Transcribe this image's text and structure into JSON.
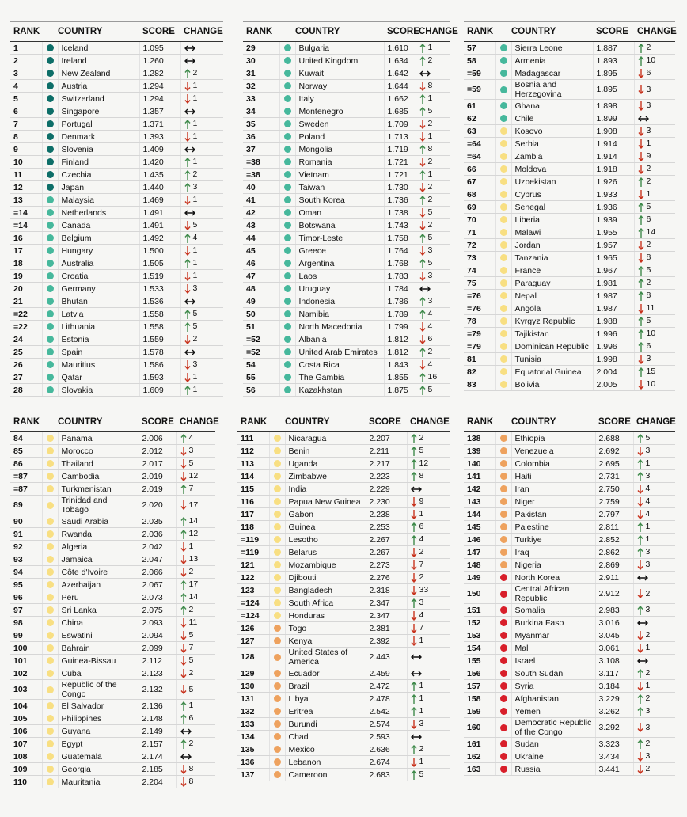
{
  "columns": [
    "RANK",
    "COUNTRY",
    "SCORE",
    "CHANGE"
  ],
  "level_colors": [
    "#0d6e68",
    "#46b89c",
    "#f8df82",
    "#eea25e",
    "#d81f2a"
  ],
  "panels": [
    {
      "rows": [
        [
          1,
          "Iceland",
          "1.095",
          "same",
          null,
          0
        ],
        [
          2,
          "Ireland",
          "1.260",
          "same",
          null,
          0
        ],
        [
          3,
          "New Zealand",
          "1.282",
          "up",
          2,
          0
        ],
        [
          4,
          "Austria",
          "1.294",
          "down",
          1,
          0
        ],
        [
          5,
          "Switzerland",
          "1.294",
          "down",
          1,
          0
        ],
        [
          6,
          "Singapore",
          "1.357",
          "same",
          null,
          0
        ],
        [
          7,
          "Portugal",
          "1.371",
          "up",
          1,
          0
        ],
        [
          8,
          "Denmark",
          "1.393",
          "down",
          1,
          0
        ],
        [
          9,
          "Slovenia",
          "1.409",
          "same",
          null,
          0
        ],
        [
          10,
          "Finland",
          "1.420",
          "up",
          1,
          0
        ],
        [
          11,
          "Czechia",
          "1.435",
          "up",
          2,
          0
        ],
        [
          12,
          "Japan",
          "1.440",
          "up",
          3,
          0
        ],
        [
          13,
          "Malaysia",
          "1.469",
          "down",
          1,
          1
        ],
        [
          "=14",
          "Netherlands",
          "1.491",
          "same",
          null,
          1
        ],
        [
          "=14",
          "Canada",
          "1.491",
          "down",
          5,
          1
        ],
        [
          16,
          "Belgium",
          "1.492",
          "up",
          4,
          1
        ],
        [
          17,
          "Hungary",
          "1.500",
          "down",
          1,
          1
        ],
        [
          18,
          "Australia",
          "1.505",
          "up",
          1,
          1
        ],
        [
          19,
          "Croatia",
          "1.519",
          "down",
          1,
          1
        ],
        [
          20,
          "Germany",
          "1.533",
          "down",
          3,
          1
        ],
        [
          21,
          "Bhutan",
          "1.536",
          "same",
          null,
          1
        ],
        [
          "=22",
          "Latvia",
          "1.558",
          "up",
          5,
          1
        ],
        [
          "=22",
          "Lithuania",
          "1.558",
          "up",
          5,
          1
        ],
        [
          24,
          "Estonia",
          "1.559",
          "down",
          2,
          1
        ],
        [
          25,
          "Spain",
          "1.578",
          "same",
          null,
          1
        ],
        [
          26,
          "Mauritius",
          "1.586",
          "down",
          3,
          1
        ],
        [
          27,
          "Qatar",
          "1.593",
          "down",
          1,
          1
        ],
        [
          28,
          "Slovakia",
          "1.609",
          "up",
          1,
          1
        ]
      ]
    },
    {
      "rows": [
        [
          29,
          "Bulgaria",
          "1.610",
          "up",
          1,
          1
        ],
        [
          30,
          "United Kingdom",
          "1.634",
          "up",
          2,
          1
        ],
        [
          31,
          "Kuwait",
          "1.642",
          "same",
          null,
          1
        ],
        [
          32,
          "Norway",
          "1.644",
          "down",
          8,
          1
        ],
        [
          33,
          "Italy",
          "1.662",
          "up",
          1,
          1
        ],
        [
          34,
          "Montenegro",
          "1.685",
          "up",
          5,
          1
        ],
        [
          35,
          "Sweden",
          "1.709",
          "down",
          2,
          1
        ],
        [
          36,
          "Poland",
          "1.713",
          "down",
          1,
          1
        ],
        [
          37,
          "Mongolia",
          "1.719",
          "up",
          8,
          1
        ],
        [
          "=38",
          "Romania",
          "1.721",
          "down",
          2,
          1
        ],
        [
          "=38",
          "Vietnam",
          "1.721",
          "up",
          1,
          1
        ],
        [
          40,
          "Taiwan",
          "1.730",
          "down",
          2,
          1
        ],
        [
          41,
          "South Korea",
          "1.736",
          "up",
          2,
          1
        ],
        [
          42,
          "Oman",
          "1.738",
          "down",
          5,
          1
        ],
        [
          43,
          "Botswana",
          "1.743",
          "down",
          2,
          1
        ],
        [
          44,
          "Timor-Leste",
          "1.758",
          "up",
          5,
          1
        ],
        [
          45,
          "Greece",
          "1.764",
          "down",
          3,
          1
        ],
        [
          46,
          "Argentina",
          "1.768",
          "up",
          5,
          1
        ],
        [
          47,
          "Laos",
          "1.783",
          "down",
          3,
          1
        ],
        [
          48,
          "Uruguay",
          "1.784",
          "same",
          null,
          1
        ],
        [
          49,
          "Indonesia",
          "1.786",
          "up",
          3,
          1
        ],
        [
          50,
          "Namibia",
          "1.789",
          "up",
          4,
          1
        ],
        [
          51,
          "North Macedonia",
          "1.799",
          "down",
          4,
          1
        ],
        [
          "=52",
          "Albania",
          "1.812",
          "down",
          6,
          1
        ],
        [
          "=52",
          "United Arab Emirates",
          "1.812",
          "up",
          2,
          1
        ],
        [
          54,
          "Costa Rica",
          "1.843",
          "down",
          4,
          1
        ],
        [
          55,
          "The Gambia",
          "1.855",
          "up",
          16,
          1
        ],
        [
          56,
          "Kazakhstan",
          "1.875",
          "up",
          5,
          1
        ]
      ]
    },
    {
      "rows": [
        [
          57,
          "Sierra Leone",
          "1.887",
          "up",
          2,
          1
        ],
        [
          58,
          "Armenia",
          "1.893",
          "up",
          10,
          1
        ],
        [
          "=59",
          "Madagascar",
          "1.895",
          "down",
          6,
          1
        ],
        [
          "=59",
          "Bosnia and Herzegovina",
          "1.895",
          "down",
          3,
          1
        ],
        [
          61,
          "Ghana",
          "1.898",
          "down",
          3,
          1
        ],
        [
          62,
          "Chile",
          "1.899",
          "same",
          null,
          1
        ],
        [
          63,
          "Kosovo",
          "1.908",
          "down",
          3,
          2
        ],
        [
          "=64",
          "Serbia",
          "1.914",
          "down",
          1,
          2
        ],
        [
          "=64",
          "Zambia",
          "1.914",
          "down",
          9,
          2
        ],
        [
          66,
          "Moldova",
          "1.918",
          "down",
          2,
          2
        ],
        [
          67,
          "Uzbekistan",
          "1.926",
          "up",
          2,
          2
        ],
        [
          68,
          "Cyprus",
          "1.933",
          "down",
          1,
          2
        ],
        [
          69,
          "Senegal",
          "1.936",
          "up",
          5,
          2
        ],
        [
          70,
          "Liberia",
          "1.939",
          "up",
          6,
          2
        ],
        [
          71,
          "Malawi",
          "1.955",
          "up",
          14,
          2
        ],
        [
          72,
          "Jordan",
          "1.957",
          "down",
          2,
          2
        ],
        [
          73,
          "Tanzania",
          "1.965",
          "down",
          8,
          2
        ],
        [
          74,
          "France",
          "1.967",
          "up",
          5,
          2
        ],
        [
          75,
          "Paraguay",
          "1.981",
          "up",
          2,
          2
        ],
        [
          "=76",
          "Nepal",
          "1.987",
          "up",
          8,
          2
        ],
        [
          "=76",
          "Angola",
          "1.987",
          "down",
          11,
          2
        ],
        [
          78,
          "Kyrgyz Republic",
          "1.988",
          "up",
          5,
          2
        ],
        [
          "=79",
          "Tajikistan",
          "1.996",
          "up",
          10,
          2
        ],
        [
          "=79",
          "Dominican Republic",
          "1.996",
          "up",
          6,
          2
        ],
        [
          81,
          "Tunisia",
          "1.998",
          "down",
          3,
          2
        ],
        [
          82,
          "Equatorial Guinea",
          "2.004",
          "up",
          15,
          2
        ],
        [
          83,
          "Bolivia",
          "2.005",
          "down",
          10,
          2
        ]
      ]
    },
    {
      "rows": [
        [
          84,
          "Panama",
          "2.006",
          "up",
          4,
          2
        ],
        [
          85,
          "Morocco",
          "2.012",
          "down",
          3,
          2
        ],
        [
          86,
          "Thailand",
          "2.017",
          "down",
          5,
          2
        ],
        [
          "=87",
          "Cambodia",
          "2.019",
          "down",
          12,
          2
        ],
        [
          "=87",
          "Turkmenistan",
          "2.019",
          "up",
          7,
          2
        ],
        [
          89,
          "Trinidad and Tobago",
          "2.020",
          "down",
          17,
          2
        ],
        [
          90,
          "Saudi Arabia",
          "2.035",
          "up",
          14,
          2
        ],
        [
          91,
          "Rwanda",
          "2.036",
          "up",
          12,
          2
        ],
        [
          92,
          "Algeria",
          "2.042",
          "down",
          1,
          2
        ],
        [
          93,
          "Jamaica",
          "2.047",
          "down",
          13,
          2
        ],
        [
          94,
          "Côte d'Ivoire",
          "2.066",
          "down",
          2,
          2
        ],
        [
          95,
          "Azerbaijan",
          "2.067",
          "up",
          17,
          2
        ],
        [
          96,
          "Peru",
          "2.073",
          "up",
          14,
          2
        ],
        [
          97,
          "Sri Lanka",
          "2.075",
          "up",
          2,
          2
        ],
        [
          98,
          "China",
          "2.093",
          "down",
          11,
          2
        ],
        [
          99,
          "Eswatini",
          "2.094",
          "down",
          5,
          2
        ],
        [
          100,
          "Bahrain",
          "2.099",
          "down",
          7,
          2
        ],
        [
          101,
          "Guinea-Bissau",
          "2.112",
          "down",
          5,
          2
        ],
        [
          102,
          "Cuba",
          "2.123",
          "down",
          2,
          2
        ],
        [
          103,
          "Republic of the Congo",
          "2.132",
          "down",
          5,
          2
        ],
        [
          104,
          "El Salvador",
          "2.136",
          "up",
          1,
          2
        ],
        [
          105,
          "Philippines",
          "2.148",
          "up",
          6,
          2
        ],
        [
          106,
          "Guyana",
          "2.149",
          "same",
          null,
          2
        ],
        [
          107,
          "Egypt",
          "2.157",
          "up",
          2,
          2
        ],
        [
          108,
          "Guatemala",
          "2.174",
          "same",
          null,
          2
        ],
        [
          109,
          "Georgia",
          "2.185",
          "down",
          8,
          2
        ],
        [
          110,
          "Mauritania",
          "2.204",
          "down",
          8,
          2
        ]
      ]
    },
    {
      "rows": [
        [
          111,
          "Nicaragua",
          "2.207",
          "up",
          2,
          2
        ],
        [
          112,
          "Benin",
          "2.211",
          "up",
          5,
          2
        ],
        [
          113,
          "Uganda",
          "2.217",
          "up",
          12,
          2
        ],
        [
          114,
          "Zimbabwe",
          "2.223",
          "up",
          8,
          2
        ],
        [
          115,
          "India",
          "2.229",
          "same",
          null,
          2
        ],
        [
          116,
          "Papua New Guinea",
          "2.230",
          "down",
          9,
          2
        ],
        [
          117,
          "Gabon",
          "2.238",
          "down",
          1,
          2
        ],
        [
          118,
          "Guinea",
          "2.253",
          "up",
          6,
          2
        ],
        [
          "=119",
          "Lesotho",
          "2.267",
          "up",
          4,
          2
        ],
        [
          "=119",
          "Belarus",
          "2.267",
          "down",
          2,
          2
        ],
        [
          121,
          "Mozambique",
          "2.273",
          "down",
          7,
          2
        ],
        [
          122,
          "Djibouti",
          "2.276",
          "down",
          2,
          2
        ],
        [
          123,
          "Bangladesh",
          "2.318",
          "down",
          33,
          2
        ],
        [
          "=124",
          "South Africa",
          "2.347",
          "up",
          3,
          2
        ],
        [
          "=124",
          "Honduras",
          "2.347",
          "down",
          4,
          2
        ],
        [
          126,
          "Togo",
          "2.381",
          "down",
          7,
          3
        ],
        [
          127,
          "Kenya",
          "2.392",
          "down",
          1,
          3
        ],
        [
          128,
          "United States of America",
          "2.443",
          "same",
          null,
          3
        ],
        [
          129,
          "Ecuador",
          "2.459",
          "same",
          null,
          3
        ],
        [
          130,
          "Brazil",
          "2.472",
          "up",
          1,
          3
        ],
        [
          131,
          "Libya",
          "2.478",
          "up",
          1,
          3
        ],
        [
          132,
          "Eritrea",
          "2.542",
          "up",
          1,
          3
        ],
        [
          133,
          "Burundi",
          "2.574",
          "down",
          3,
          3
        ],
        [
          134,
          "Chad",
          "2.593",
          "same",
          null,
          3
        ],
        [
          135,
          "Mexico",
          "2.636",
          "up",
          2,
          3
        ],
        [
          136,
          "Lebanon",
          "2.674",
          "down",
          1,
          3
        ],
        [
          137,
          "Cameroon",
          "2.683",
          "up",
          5,
          3
        ]
      ]
    },
    {
      "rows": [
        [
          138,
          "Ethiopia",
          "2.688",
          "up",
          5,
          3
        ],
        [
          139,
          "Venezuela",
          "2.692",
          "down",
          3,
          3
        ],
        [
          140,
          "Colombia",
          "2.695",
          "up",
          1,
          3
        ],
        [
          141,
          "Haiti",
          "2.731",
          "up",
          3,
          3
        ],
        [
          142,
          "Iran",
          "2.750",
          "down",
          4,
          3
        ],
        [
          143,
          "Niger",
          "2.759",
          "down",
          4,
          3
        ],
        [
          144,
          "Pakistan",
          "2.797",
          "down",
          4,
          3
        ],
        [
          145,
          "Palestine",
          "2.811",
          "up",
          1,
          3
        ],
        [
          146,
          "Turkiye",
          "2.852",
          "up",
          1,
          3
        ],
        [
          147,
          "Iraq",
          "2.862",
          "up",
          3,
          3
        ],
        [
          148,
          "Nigeria",
          "2.869",
          "down",
          3,
          3
        ],
        [
          149,
          "North Korea",
          "2.911",
          "same",
          null,
          4
        ],
        [
          150,
          "Central African Republic",
          "2.912",
          "down",
          2,
          4
        ],
        [
          151,
          "Somalia",
          "2.983",
          "up",
          3,
          4
        ],
        [
          152,
          "Burkina Faso",
          "3.016",
          "same",
          null,
          4
        ],
        [
          153,
          "Myanmar",
          "3.045",
          "down",
          2,
          4
        ],
        [
          154,
          "Mali",
          "3.061",
          "down",
          1,
          4
        ],
        [
          155,
          "Israel",
          "3.108",
          "same",
          null,
          4
        ],
        [
          156,
          "South Sudan",
          "3.117",
          "up",
          2,
          4
        ],
        [
          157,
          "Syria",
          "3.184",
          "down",
          1,
          4
        ],
        [
          158,
          "Afghanistan",
          "3.229",
          "up",
          2,
          4
        ],
        [
          159,
          "Yemen",
          "3.262",
          "up",
          3,
          4
        ],
        [
          160,
          "Democratic Republic of the Congo",
          "3.292",
          "down",
          3,
          4
        ],
        [
          161,
          "Sudan",
          "3.323",
          "up",
          2,
          4
        ],
        [
          162,
          "Ukraine",
          "3.434",
          "down",
          3,
          4
        ],
        [
          163,
          "Russia",
          "3.441",
          "down",
          2,
          4
        ]
      ]
    }
  ]
}
